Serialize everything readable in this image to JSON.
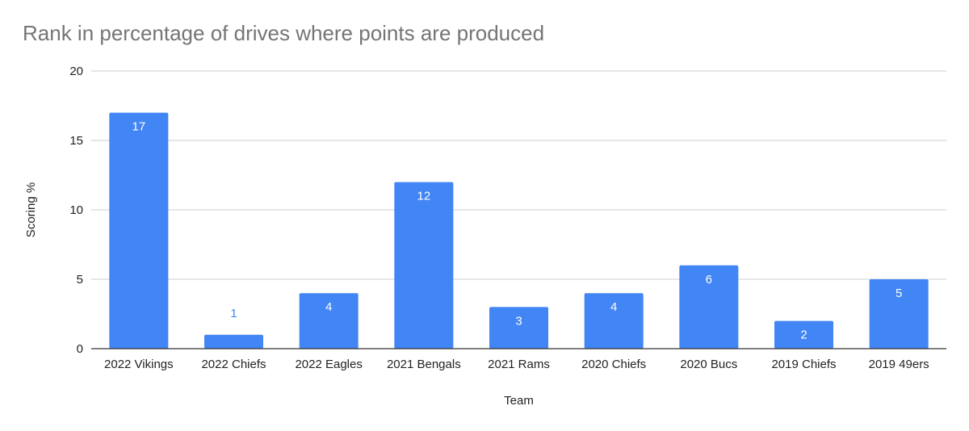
{
  "chart_data": {
    "type": "bar",
    "title": "Rank in percentage of drives where points are produced",
    "xlabel": "Team",
    "ylabel": "Scoring %",
    "categories": [
      "2022 Vikings",
      "2022 Chiefs",
      "2022 Eagles",
      "2021 Bengals",
      "2021 Rams",
      "2020 Chiefs",
      "2020 Bucs",
      "2019 Chiefs",
      "2019 49ers"
    ],
    "values": [
      17,
      1,
      4,
      12,
      3,
      4,
      6,
      2,
      5
    ],
    "ylim": [
      0,
      20
    ],
    "yticks": [
      0,
      5,
      10,
      15,
      20
    ],
    "grid": true,
    "legend": "none",
    "colors": {
      "bar": "#4285f4",
      "grid": "#cccccc",
      "axis": "#333333",
      "title": "#757575"
    }
  }
}
